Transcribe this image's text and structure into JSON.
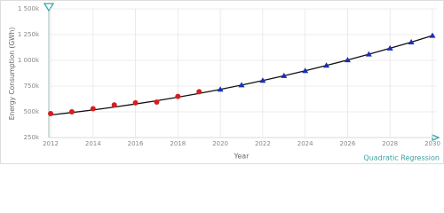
{
  "chart_data": {
    "type": "line",
    "xlabel": "Year",
    "ylabel": "Energy Consumption (GWh)",
    "annotation": "Quadratic Regression",
    "x": [
      2012,
      2013,
      2014,
      2015,
      2016,
      2017,
      2018,
      2019,
      2020,
      2021,
      2022,
      2023,
      2024,
      2025,
      2026,
      2027,
      2028,
      2029,
      2030
    ],
    "series": [
      {
        "type": "line",
        "color": "#111111",
        "values": [
          470000,
          493000,
          518000,
          546000,
          576000,
          608000,
          642000,
          679000,
          718000,
          760000,
          804000,
          850000,
          899000,
          950000,
          1003000,
          1059000,
          1117000,
          1177000,
          1240000
        ]
      },
      {
        "type": "scatter",
        "marker": "circle",
        "color": "#d81e1e",
        "values": [
          483000,
          500000,
          530000,
          567000,
          587000,
          595000,
          650000,
          695000,
          null,
          null,
          null,
          null,
          null,
          null,
          null,
          null,
          null,
          null,
          null
        ]
      },
      {
        "type": "scatter",
        "marker": "triangle",
        "color": "#1a2fb8",
        "values": [
          null,
          null,
          null,
          null,
          null,
          null,
          null,
          null,
          718000,
          760000,
          804000,
          850000,
          899000,
          950000,
          1003000,
          1059000,
          1117000,
          1177000,
          1240000
        ]
      }
    ],
    "xlim": [
      2012,
      2030
    ],
    "ylim": [
      250000,
      1500000
    ],
    "xticks": [
      2012,
      2014,
      2016,
      2018,
      2020,
      2022,
      2024,
      2026,
      2028,
      2030
    ],
    "yticks": [
      {
        "value": 250000,
        "label": "250k"
      },
      {
        "value": 500000,
        "label": "500k"
      },
      {
        "value": 750000,
        "label": "750k"
      },
      {
        "value": 1000000,
        "label": "1 000k"
      },
      {
        "value": 1250000,
        "label": "1 250k"
      },
      {
        "value": 1500000,
        "label": "1 500k"
      }
    ],
    "grid": true
  }
}
